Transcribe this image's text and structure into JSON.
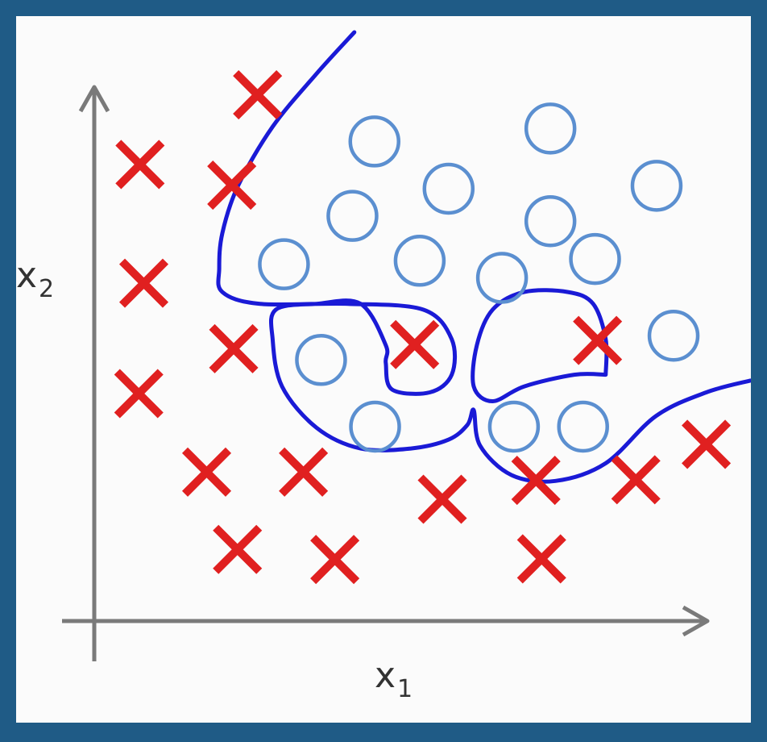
{
  "chart_data": {
    "type": "scatter",
    "xlabel": "x",
    "xlabel_sub": "1",
    "ylabel": "x",
    "ylabel_sub": "2",
    "grid": false,
    "legend": "none",
    "colors": {
      "frame": "#1f5b86",
      "background": "#fbfbfb",
      "axis": "#7a7a7a",
      "negative": "#e02020",
      "positive": "#5b8fd0",
      "boundary": "#1a1ad6"
    },
    "xlim": [
      0,
      100
    ],
    "ylim": [
      0,
      100
    ],
    "series": [
      {
        "marker": "x",
        "points": [
          [
            25.6,
            89.4
          ],
          [
            6.9,
            77.6
          ],
          [
            21.5,
            74.1
          ],
          [
            7.5,
            57.5
          ],
          [
            21.8,
            46.4
          ],
          [
            6.7,
            38.8
          ],
          [
            17.5,
            25.5
          ],
          [
            32.9,
            25.5
          ],
          [
            22.4,
            12.4
          ],
          [
            37.9,
            10.7
          ],
          [
            50.6,
            47.1
          ],
          [
            79.7,
            47.8
          ],
          [
            55.0,
            20.9
          ],
          [
            69.9,
            24.1
          ],
          [
            85.8,
            24.2
          ],
          [
            97.0,
            30.2
          ],
          [
            70.8,
            10.8
          ]
        ]
      },
      {
        "marker": "o",
        "points": [
          [
            44.2,
            81.5
          ],
          [
            72.2,
            83.7
          ],
          [
            56.0,
            73.5
          ],
          [
            89.1,
            74.0
          ],
          [
            40.7,
            68.9
          ],
          [
            72.2,
            68.0
          ],
          [
            29.8,
            60.7
          ],
          [
            51.4,
            61.3
          ],
          [
            64.5,
            58.4
          ],
          [
            79.3,
            61.6
          ],
          [
            35.7,
            44.5
          ],
          [
            91.8,
            48.6
          ],
          [
            44.3,
            33.2
          ],
          [
            66.4,
            33.2
          ],
          [
            77.4,
            33.2
          ]
        ]
      }
    ],
    "boundary": [
      [
        [
          41.0,
          100.0
        ],
        [
          35.0,
          93.0
        ],
        [
          28.0,
          84.0
        ],
        [
          22.5,
          74.0
        ],
        [
          20.0,
          66.0
        ],
        [
          19.5,
          60.0
        ],
        [
          20.0,
          56.0
        ],
        [
          26.0,
          54.0
        ],
        [
          40.0,
          54.0
        ],
        [
          52.0,
          53.0
        ],
        [
          56.5,
          48.0
        ],
        [
          56.5,
          42.0
        ],
        [
          53.0,
          39.0
        ],
        [
          47.0,
          39.5
        ],
        [
          46.0,
          44.0
        ],
        [
          46.0,
          47.0
        ],
        [
          42.0,
          54.0
        ],
        [
          35.0,
          54.0
        ],
        [
          28.5,
          53.0
        ],
        [
          28.0,
          48.0
        ],
        [
          29.5,
          40.0
        ],
        [
          35.0,
          33.0
        ],
        [
          42.0,
          29.5
        ],
        [
          50.0,
          29.5
        ],
        [
          56.0,
          31.0
        ],
        [
          59.0,
          33.5
        ],
        [
          60.0,
          36.0
        ],
        [
          61.0,
          30.0
        ],
        [
          66.0,
          25.0
        ],
        [
          73.0,
          24.0
        ],
        [
          81.0,
          27.0
        ],
        [
          89.0,
          35.0
        ],
        [
          97.0,
          39.0
        ],
        [
          104.0,
          41.0
        ]
      ],
      [
        [
          81.0,
          42.0
        ],
        [
          81.0,
          48.0
        ],
        [
          79.0,
          54.0
        ],
        [
          75.0,
          56.0
        ],
        [
          68.0,
          56.0
        ],
        [
          63.0,
          53.0
        ],
        [
          60.5,
          47.0
        ],
        [
          60.0,
          40.0
        ],
        [
          63.0,
          37.5
        ],
        [
          68.0,
          40.0
        ],
        [
          76.0,
          42.0
        ],
        [
          81.0,
          42.0
        ]
      ]
    ]
  }
}
